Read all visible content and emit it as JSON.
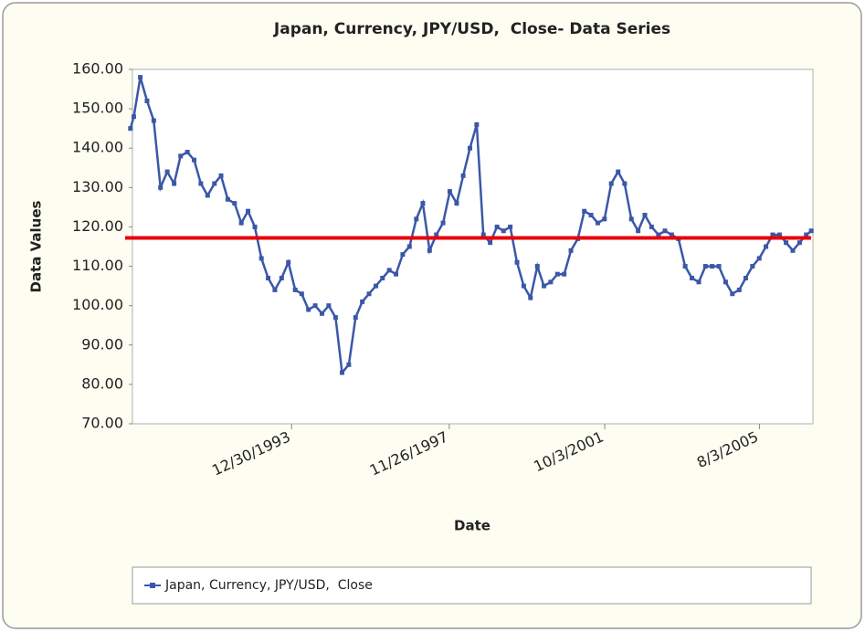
{
  "chart_data": {
    "type": "line",
    "title": "Japan, Currency, JPY/USD,  Close- Data Series",
    "x_label": "Date",
    "y_label": "Data Values",
    "x": [
      "1/2/1990",
      "2/1/1990",
      "4/1/1990",
      "6/1/1990",
      "8/1/1990",
      "10/1/1990",
      "12/1/1990",
      "2/1/1991",
      "4/1/1991",
      "6/1/1991",
      "8/1/1991",
      "10/1/1991",
      "12/1/1991",
      "2/1/1992",
      "4/1/1992",
      "6/1/1992",
      "8/1/1992",
      "10/1/1992",
      "12/1/1992",
      "2/1/1993",
      "4/1/1993",
      "6/1/1993",
      "8/1/1993",
      "10/1/1993",
      "12/1/1993",
      "2/1/1994",
      "4/1/1994",
      "6/1/1994",
      "8/1/1994",
      "10/1/1994",
      "12/1/1994",
      "2/1/1995",
      "4/1/1995",
      "6/1/1995",
      "8/1/1995",
      "10/1/1995",
      "12/1/1995",
      "2/1/1996",
      "4/1/1996",
      "6/1/1996",
      "8/1/1996",
      "10/1/1996",
      "12/1/1996",
      "2/1/1997",
      "4/1/1997",
      "6/1/1997",
      "8/1/1997",
      "10/1/1997",
      "12/1/1997",
      "2/1/1998",
      "4/1/1998",
      "6/1/1998",
      "8/1/1998",
      "10/1/1998",
      "12/1/1998",
      "2/1/1999",
      "4/1/1999",
      "6/1/1999",
      "8/1/1999",
      "10/1/1999",
      "12/1/1999",
      "2/1/2000",
      "4/1/2000",
      "6/1/2000",
      "8/1/2000",
      "10/1/2000",
      "12/1/2000",
      "2/1/2001",
      "4/1/2001",
      "6/1/2001",
      "8/1/2001",
      "10/1/2001",
      "12/1/2001",
      "2/1/2002",
      "4/1/2002",
      "6/1/2002",
      "8/1/2002",
      "10/1/2002",
      "12/1/2002",
      "2/1/2003",
      "4/1/2003",
      "6/1/2003",
      "8/1/2003",
      "10/1/2003",
      "12/1/2003",
      "2/1/2004",
      "4/1/2004",
      "6/1/2004",
      "8/1/2004",
      "10/1/2004",
      "12/1/2004",
      "2/1/2005",
      "4/1/2005",
      "6/1/2005",
      "8/1/2005",
      "10/1/2005",
      "12/1/2005",
      "2/1/2006",
      "4/1/2006",
      "6/1/2006",
      "8/1/2006",
      "10/1/2006",
      "11/15/2006"
    ],
    "series": [
      {
        "name": "Japan, Currency, JPY/USD,  Close",
        "color": "#3b57a7",
        "values": [
          145,
          148,
          158,
          152,
          147,
          130,
          134,
          131,
          138,
          139,
          137,
          131,
          128,
          131,
          133,
          127,
          126,
          121,
          124,
          120,
          112,
          107,
          104,
          107,
          111,
          104,
          103,
          99,
          100,
          98,
          100,
          97,
          83,
          85,
          97,
          101,
          103,
          105,
          107,
          109,
          108,
          113,
          115,
          122,
          126,
          114,
          118,
          121,
          129,
          126,
          133,
          140,
          146,
          118,
          116,
          120,
          119,
          120,
          111,
          105,
          102,
          110,
          105,
          106,
          108,
          108,
          114,
          117,
          124,
          123,
          121,
          122,
          131,
          134,
          131,
          122,
          119,
          123,
          120,
          118,
          119,
          118,
          117,
          110,
          107,
          106,
          110,
          110,
          110,
          106,
          103,
          104,
          107,
          110,
          112,
          115,
          118,
          118,
          116,
          114,
          116,
          118,
          119
        ]
      }
    ],
    "reference_line": {
      "value": 117.2,
      "color": "#e8000b"
    },
    "xlim": [
      "1/20/1990",
      "11/30/2006"
    ],
    "xticks": [
      "12/30/1993",
      "11/26/1997",
      "10/3/2001",
      "8/3/2005"
    ],
    "ylim": [
      70,
      160
    ],
    "yticks": [
      {
        "value": 70,
        "label": "70.00"
      },
      {
        "value": 80,
        "label": "80.00"
      },
      {
        "value": 90,
        "label": "90.00"
      },
      {
        "value": 100,
        "label": "100.00"
      },
      {
        "value": 110,
        "label": "110.00"
      },
      {
        "value": 120,
        "label": "120.00"
      },
      {
        "value": 130,
        "label": "130.00"
      },
      {
        "value": 140,
        "label": "140.00"
      },
      {
        "value": 150,
        "label": "150.00"
      },
      {
        "value": 160,
        "label": "160.00"
      }
    ],
    "grid": false,
    "legend": "bottom"
  }
}
